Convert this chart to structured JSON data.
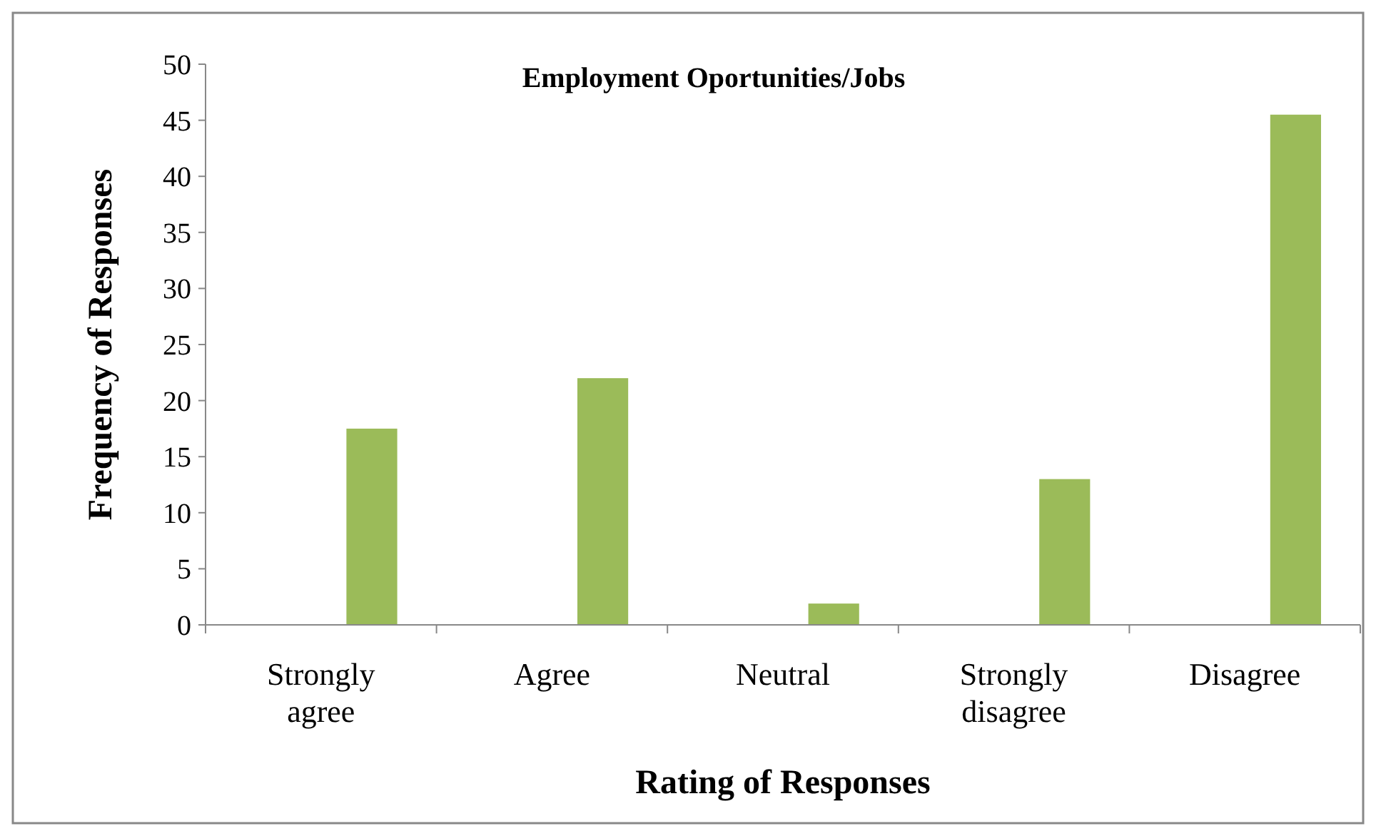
{
  "chart_data": {
    "type": "bar",
    "title": "Employment Oportunities/Jobs",
    "xlabel": "Rating of Responses",
    "ylabel": "Frequency of Responses",
    "categories": [
      "Strongly agree",
      "Agree",
      "Neutral",
      "Strongly disagree",
      "Disagree"
    ],
    "values": [
      17.5,
      22,
      1.9,
      13,
      45.5
    ],
    "color": "#9bbb59",
    "ylim": [
      0,
      50
    ],
    "yticks": [
      0,
      5,
      10,
      15,
      20,
      25,
      30,
      35,
      40,
      45,
      50
    ],
    "grid": false
  }
}
